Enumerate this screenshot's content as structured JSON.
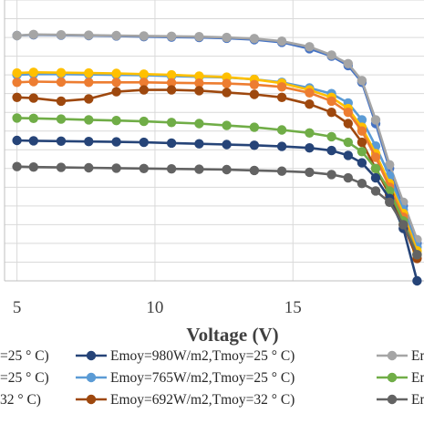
{
  "chart_data": {
    "type": "line",
    "xlabel": "Voltage (V)",
    "x_ticks": [
      5,
      10,
      15
    ],
    "x_tick_labels": [
      "5",
      "10",
      "15"
    ],
    "grid": true,
    "legend_position": "bottom",
    "series": [
      {
        "name": "Emoy=980W/m2,Tmoy=25 ° C)",
        "color": "#4472c4",
        "x": [
          5.0,
          5.6,
          6.6,
          7.6,
          8.6,
          9.6,
          10.6,
          11.6,
          12.6,
          13.6,
          14.6,
          15.6,
          16.4,
          17.0,
          17.5,
          18.0,
          18.5,
          19.0,
          19.5
        ],
        "y": [
          6.55,
          6.57,
          6.56,
          6.55,
          6.54,
          6.52,
          6.51,
          6.5,
          6.48,
          6.44,
          6.37,
          6.2,
          6.0,
          5.75,
          5.3,
          4.2,
          3.0,
          2.0,
          1.0
        ]
      },
      {
        "name": "Emoy=980W/m2,Tmoy=25 ° C)",
        "color": "#a5a5a5",
        "x": [
          5.0,
          5.6,
          6.6,
          7.6,
          8.6,
          9.6,
          10.6,
          11.6,
          12.6,
          13.6,
          14.6,
          15.6,
          16.4,
          17.0,
          17.5,
          18.0,
          18.5,
          19.0,
          19.5
        ],
        "y": [
          6.55,
          6.58,
          6.57,
          6.56,
          6.55,
          6.54,
          6.53,
          6.52,
          6.5,
          6.47,
          6.4,
          6.25,
          6.03,
          5.8,
          5.35,
          4.3,
          3.1,
          2.1,
          1.1
        ]
      },
      {
        "name": "Emoy=765W/m2,Tmoy=25 ° C)",
        "color": "#5b9bd5",
        "x": [
          5.0,
          5.6,
          6.6,
          7.6,
          8.6,
          9.6,
          10.6,
          11.6,
          12.6,
          13.6,
          14.6,
          15.6,
          16.4,
          17.0,
          17.5,
          18.0,
          18.5,
          19.0,
          19.5
        ],
        "y": [
          5.5,
          5.52,
          5.52,
          5.51,
          5.5,
          5.49,
          5.47,
          5.45,
          5.43,
          5.38,
          5.3,
          5.15,
          5.0,
          4.75,
          4.3,
          3.6,
          2.8,
          1.9,
          0.9
        ]
      },
      {
        "name": "",
        "color": "#ffc000",
        "x": [
          5.0,
          5.6,
          6.6,
          7.6,
          8.6,
          9.6,
          10.6,
          11.6,
          12.6,
          13.6,
          14.6,
          15.6,
          16.4,
          17.0,
          17.5,
          18.0,
          18.5,
          19.0,
          19.5
        ],
        "y": [
          5.55,
          5.57,
          5.56,
          5.55,
          5.54,
          5.52,
          5.5,
          5.47,
          5.44,
          5.38,
          5.28,
          5.1,
          4.9,
          4.6,
          4.1,
          3.4,
          2.6,
          1.8,
          0.8
        ]
      },
      {
        "name": "",
        "color": "#ed7d31",
        "x": [
          5.0,
          5.6,
          6.6,
          7.6,
          8.6,
          9.6,
          10.6,
          11.6,
          12.6,
          13.6,
          14.6,
          15.6,
          16.4,
          17.0,
          17.5,
          18.0,
          18.5,
          19.0,
          19.5
        ],
        "y": [
          5.3,
          5.32,
          5.31,
          5.3,
          5.3,
          5.3,
          5.29,
          5.28,
          5.27,
          5.24,
          5.18,
          5.02,
          4.8,
          4.5,
          4.0,
          3.3,
          2.5,
          1.7,
          0.7
        ]
      },
      {
        "name": "Emoy=692W/m2,Tmoy=32 ° C)",
        "color": "#9e480e",
        "x": [
          5.0,
          5.6,
          6.6,
          7.6,
          8.6,
          9.6,
          10.6,
          11.6,
          12.6,
          13.6,
          14.6,
          15.6,
          16.4,
          17.0,
          17.5,
          18.0,
          18.5,
          19.0,
          19.5
        ],
        "y": [
          4.9,
          4.88,
          4.8,
          4.86,
          5.05,
          5.1,
          5.1,
          5.08,
          5.03,
          4.98,
          4.9,
          4.72,
          4.5,
          4.2,
          3.7,
          3.0,
          2.3,
          1.5,
          0.6
        ]
      },
      {
        "name": "",
        "color": "#70ad47",
        "x": [
          5.0,
          5.6,
          6.6,
          7.6,
          8.6,
          9.6,
          10.6,
          11.6,
          12.6,
          13.6,
          14.6,
          15.6,
          16.4,
          17.0,
          17.5,
          18.0,
          18.5,
          19.0,
          19.5
        ],
        "y": [
          4.35,
          4.34,
          4.32,
          4.3,
          4.28,
          4.26,
          4.23,
          4.2,
          4.15,
          4.1,
          4.03,
          3.95,
          3.85,
          3.7,
          3.45,
          3.0,
          2.4,
          1.6,
          0.7
        ]
      },
      {
        "name": "Emoy=980W/m2,Tmoy=25 ° C)",
        "color": "#264478",
        "x": [
          5.0,
          5.6,
          6.6,
          7.6,
          8.6,
          9.6,
          10.6,
          11.6,
          12.6,
          13.6,
          14.6,
          15.6,
          16.4,
          17.0,
          17.5,
          18.0,
          18.5,
          19.0,
          19.5
        ],
        "y": [
          3.75,
          3.74,
          3.73,
          3.72,
          3.71,
          3.7,
          3.68,
          3.66,
          3.64,
          3.62,
          3.59,
          3.55,
          3.48,
          3.35,
          3.15,
          2.75,
          2.2,
          1.4,
          0.0
        ]
      },
      {
        "name": "",
        "color": "#636363",
        "x": [
          5.0,
          5.6,
          6.6,
          7.6,
          8.6,
          9.6,
          10.6,
          11.6,
          12.6,
          13.6,
          14.6,
          15.6,
          16.4,
          17.0,
          17.5,
          18.0,
          18.5,
          19.0,
          19.5
        ],
        "y": [
          3.05,
          3.04,
          3.03,
          3.02,
          3.01,
          3.0,
          2.99,
          2.98,
          2.97,
          2.95,
          2.93,
          2.9,
          2.84,
          2.75,
          2.6,
          2.4,
          2.1,
          1.5,
          0.7
        ]
      }
    ]
  },
  "legend": [
    [
      {
        "text": "=25 ° C)",
        "color": ""
      },
      {
        "text": "Emoy=980W/m2,Tmoy=25 ° C)",
        "color": "#264478"
      },
      {
        "text": "Emoy",
        "color": "#a5a5a5"
      }
    ],
    [
      {
        "text": "=25 ° C)",
        "color": ""
      },
      {
        "text": "Emoy=765W/m2,Tmoy=25 ° C)",
        "color": "#5b9bd5"
      },
      {
        "text": "Emoy",
        "color": "#70ad47"
      }
    ],
    [
      {
        "text": "32 ° C)",
        "color": ""
      },
      {
        "text": "Emoy=692W/m2,Tmoy=32 ° C)",
        "color": "#9e480e"
      },
      {
        "text": "Emoy",
        "color": "#636363"
      }
    ]
  ]
}
